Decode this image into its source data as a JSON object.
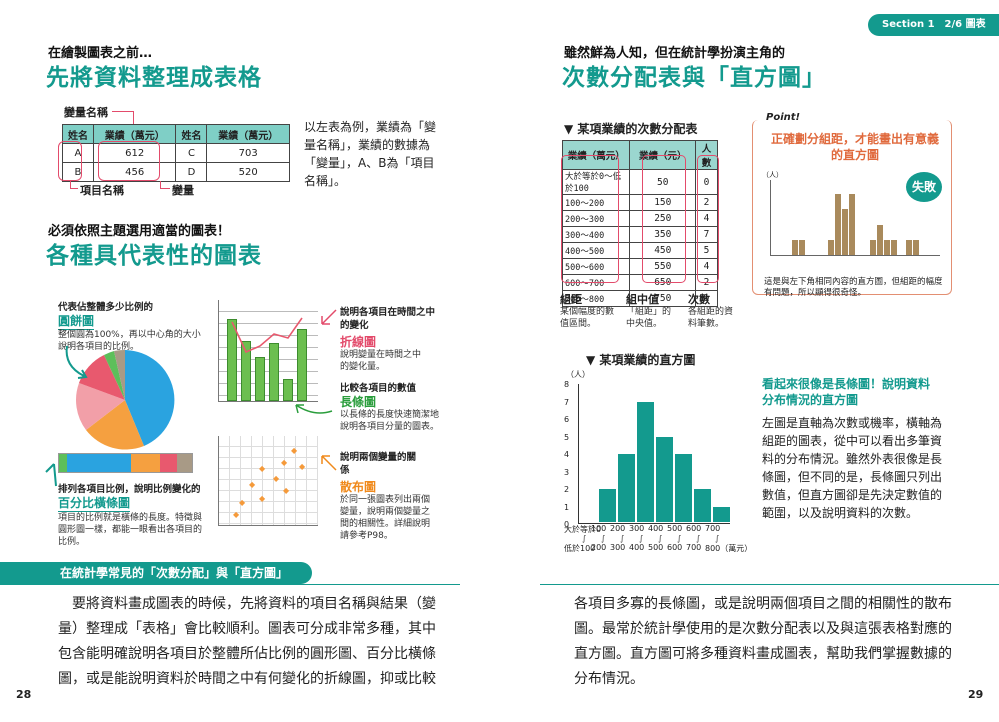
{
  "header": {
    "section": "Section 1　2/6 圖表"
  },
  "left": {
    "intro_small": "在繪製圖表之前…",
    "intro_big": "先將資料整理成表格",
    "var_name_label": "變量名稱",
    "item_name_label": "項目名稱",
    "variable_label": "變量",
    "table": {
      "headers": [
        "姓名",
        "業績（萬元）",
        "姓名",
        "業績（萬元）"
      ],
      "rows": [
        [
          "A",
          "612",
          "C",
          "703"
        ],
        [
          "B",
          "456",
          "D",
          "520"
        ]
      ]
    },
    "table_note": "以左表為例，業績為「變量名稱」，業績的數據為「變量」，A、B為「項目名稱」。",
    "choose_small": "必須依照主題選用適當的圖表！",
    "choose_big": "各種具代表性的圖表",
    "pie": {
      "desc": "代表佔整體多少比例的",
      "name": "圓餅圖",
      "note": "整個圓為100%，再以中心角的大小說明各項目的比例。"
    },
    "stack": {
      "desc": "排列各項目比例，說明比例變化的",
      "name": "百分比橫條圖",
      "note": "項目的比例就是橫條的長度。特徵與圓形圖一樣，都能一眼看出各項目的比例。"
    },
    "line": {
      "desc": "說明各項目在時間之中的變化",
      "name": "折線圖",
      "note": "說明變量在時間之中的變化量。"
    },
    "barg": {
      "desc": "比較各項目的數值",
      "name": "長條圖",
      "note": "以長條的長度快速簡潔地說明各項目分量的圖表。"
    },
    "scatter": {
      "desc": "說明兩個變量的關係",
      "name": "散布圖",
      "note": "於同一張圖表列出兩個變量，說明兩個變量之間的相關性。詳細說明請參考P98。"
    },
    "section_bar": "在統計學常見的「次數分配」與「直方圖」",
    "para": [
      "要將資料畫成圖表的時候，先將資料的項目名稱與結果（變",
      "量）整理成「表格」會比較順利。圖表可分成非常多種，其中",
      "包含能明確說明各項目於整體所佔比例的圓形圖、百分比橫條",
      "圖，或是能說明資料於時間之中有何變化的折線圖，抑或比較"
    ],
    "page_no": "28"
  },
  "right": {
    "intro_small": "雖然鮮為人知，但在統計學扮演主角的",
    "intro_big": "次數分配表與「直方圖」",
    "freq_title": "▼ 某項業績的次數分配表",
    "freq_headers": [
      "業績（萬元）",
      "業績（元）",
      "人數"
    ],
    "freq_rows": [
      [
        "大於等於0～低於100",
        "50",
        "0"
      ],
      [
        "100～200",
        "150",
        "2"
      ],
      [
        "200～300",
        "250",
        "4"
      ],
      [
        "300～400",
        "350",
        "7"
      ],
      [
        "400～500",
        "450",
        "5"
      ],
      [
        "500～600",
        "550",
        "4"
      ],
      [
        "600～700",
        "650",
        "2"
      ],
      [
        "700～800",
        "750",
        "1"
      ]
    ],
    "labels": {
      "interval": "組距",
      "interval_note": "某個幅度的數值區間。",
      "mid": "組中值",
      "mid_note": "「組距」的中央值。",
      "count": "次數",
      "count_note": "各組距的資料筆數。"
    },
    "point": {
      "tag": "Point!",
      "title": "正確劃分組距，才能畫出有意義的直方圖",
      "fail": "失敗",
      "ylabel": "（人）",
      "note": "這是與左下角相同內容的直方圖，但組距的幅度有問題，所以顯得很奇怪。"
    },
    "hist_title": "▼ 某項業績的直方圖",
    "hist_ylabel": "（人）",
    "hist_yticks": [
      "8",
      "7",
      "6",
      "5",
      "4",
      "3",
      "2",
      "1",
      "0"
    ],
    "hist_xtop": [
      "大於等於0",
      "100",
      "200",
      "300",
      "400",
      "500",
      "600",
      "700"
    ],
    "hist_xbot": [
      "低於100",
      "200",
      "300",
      "400",
      "500",
      "600",
      "700",
      "800（萬元）"
    ],
    "side_title": "看起來很像是長條圖！說明資料分布情況的直方圖",
    "side_text": "左圖是直軸為次數或機率，橫軸為組距的圖表，從中可以看出多筆資料的分布情況。雖然外表很像是長條圖，但不同的是，長條圖只列出數值，但直方圖卻是先決定數值的範圍，以及說明資料的次數。",
    "para": [
      "各項目多寡的長條圖，或是說明兩個項目之間的相關性的散布",
      "圖。最常於統計學使用的是次數分配表以及與這張表格對應的",
      "直方圖。直方圖可將多種資料畫成圖表，幫助我們掌握數據的",
      "分布情況。"
    ],
    "page_no": "29"
  },
  "chart_data": [
    {
      "type": "bar",
      "title": "某項業績的直方圖",
      "ylabel": "（人）",
      "categories": [
        "0-100",
        "100-200",
        "200-300",
        "300-400",
        "400-500",
        "500-600",
        "600-700",
        "700-800"
      ],
      "values": [
        0,
        2,
        4,
        7,
        5,
        4,
        2,
        1
      ],
      "ylim": [
        0,
        8
      ]
    },
    {
      "type": "bar",
      "title": "正確劃分組距，才能畫出有意義的直方圖",
      "ylabel": "（人）",
      "values": [
        0,
        0,
        0,
        1,
        1,
        0,
        0,
        0,
        1,
        4,
        3,
        4,
        0,
        0,
        1,
        2,
        1,
        1,
        0,
        1,
        1,
        0,
        0,
        0
      ],
      "ylim": [
        0,
        5
      ]
    }
  ]
}
